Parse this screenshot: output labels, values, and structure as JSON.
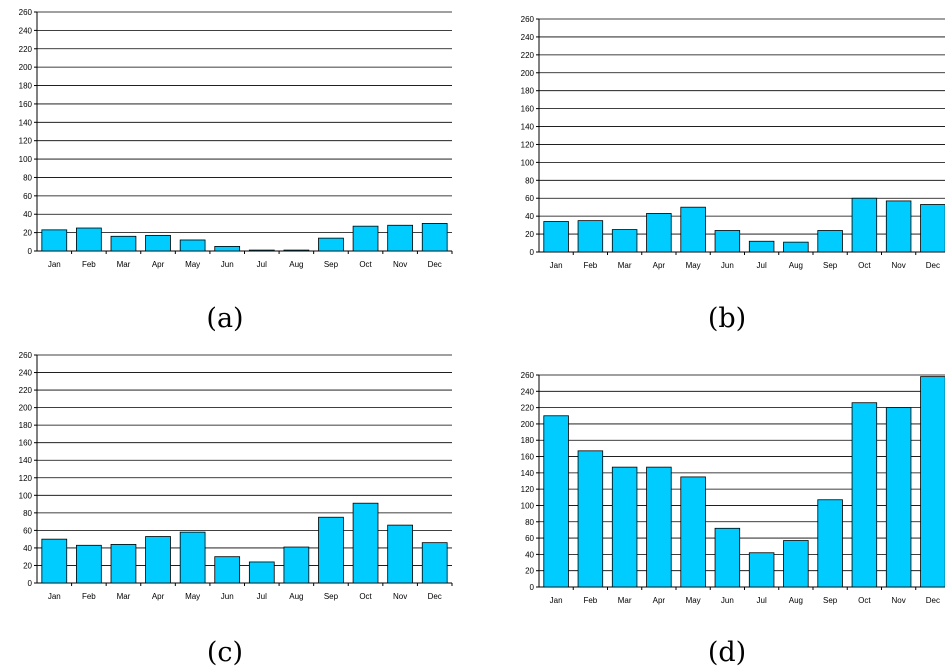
{
  "colors": {
    "bar_fill": "#00CCFF",
    "bar_stroke": "#000000",
    "grid": "#000000",
    "background": "#ffffff"
  },
  "chart_data": [
    {
      "type": "bar",
      "caption": "(a)",
      "categories": [
        "Jan",
        "Feb",
        "Mar",
        "Apr",
        "May",
        "Jun",
        "Jul",
        "Aug",
        "Sep",
        "Oct",
        "Nov",
        "Dec"
      ],
      "values": [
        23,
        25,
        16,
        17,
        12,
        5,
        1,
        1,
        14,
        27,
        28,
        30
      ],
      "ylim": [
        0,
        260
      ],
      "yticks": [
        0,
        20,
        40,
        60,
        80,
        100,
        120,
        140,
        160,
        180,
        200,
        220,
        240,
        260
      ],
      "grid": true,
      "title": "",
      "xlabel": "",
      "ylabel": ""
    },
    {
      "type": "bar",
      "caption": "(b)",
      "categories": [
        "Jan",
        "Feb",
        "Mar",
        "Apr",
        "May",
        "Jun",
        "Jul",
        "Aug",
        "Sep",
        "Oct",
        "Nov",
        "Dec"
      ],
      "values": [
        34,
        35,
        25,
        43,
        50,
        24,
        12,
        11,
        24,
        60,
        57,
        53
      ],
      "ylim": [
        0,
        260
      ],
      "yticks": [
        0,
        20,
        40,
        60,
        80,
        100,
        120,
        140,
        160,
        180,
        200,
        220,
        240,
        260
      ],
      "grid": true,
      "title": "",
      "xlabel": "",
      "ylabel": ""
    },
    {
      "type": "bar",
      "caption": "(c)",
      "categories": [
        "Jan",
        "Feb",
        "Mar",
        "Apr",
        "May",
        "Jun",
        "Jul",
        "Aug",
        "Sep",
        "Oct",
        "Nov",
        "Dec"
      ],
      "values": [
        50,
        43,
        44,
        53,
        58,
        30,
        24,
        41,
        75,
        91,
        66,
        46
      ],
      "ylim": [
        0,
        260
      ],
      "yticks": [
        0,
        20,
        40,
        60,
        80,
        100,
        120,
        140,
        160,
        180,
        200,
        220,
        240,
        260
      ],
      "grid": true,
      "title": "",
      "xlabel": "",
      "ylabel": ""
    },
    {
      "type": "bar",
      "caption": "(d)",
      "categories": [
        "Jan",
        "Feb",
        "Mar",
        "Apr",
        "May",
        "Jun",
        "Jul",
        "Aug",
        "Sep",
        "Oct",
        "Nov",
        "Dec"
      ],
      "values": [
        210,
        167,
        147,
        147,
        135,
        72,
        42,
        57,
        107,
        226,
        220,
        258
      ],
      "ylim": [
        0,
        260
      ],
      "yticks": [
        0,
        20,
        40,
        60,
        80,
        100,
        120,
        140,
        160,
        180,
        200,
        220,
        240,
        260
      ],
      "grid": true,
      "title": "",
      "xlabel": "",
      "ylabel": ""
    }
  ]
}
